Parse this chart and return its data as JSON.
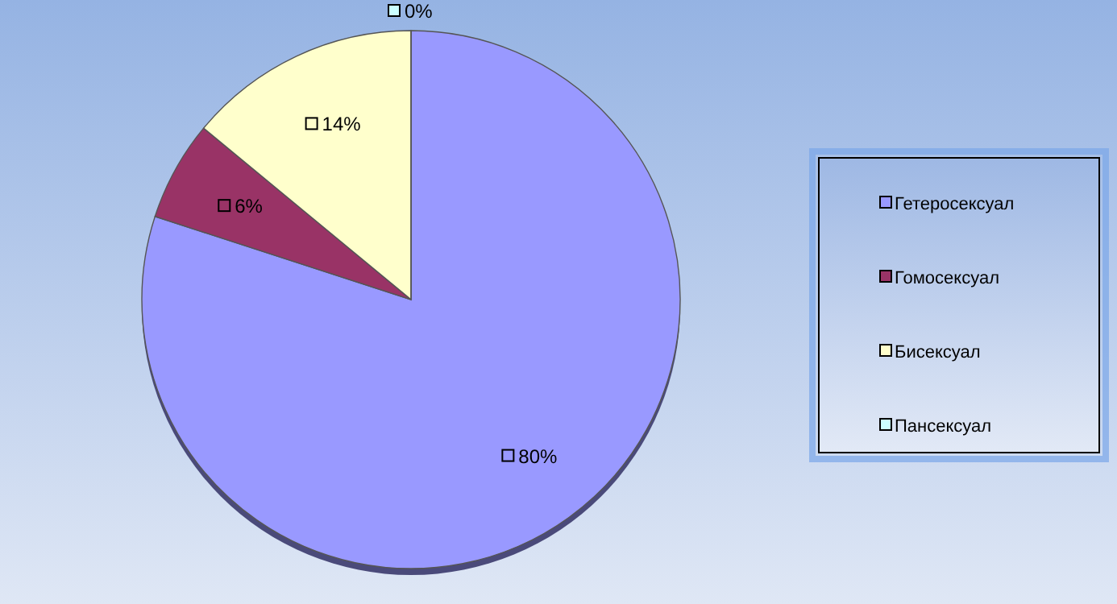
{
  "chart_data": {
    "type": "pie",
    "categories": [
      "Гетеросексуал",
      "Гомосексуал",
      "Бисексуал",
      "Пансексуал"
    ],
    "values": [
      80,
      6,
      14,
      0
    ],
    "colors": [
      "#9999ff",
      "#993366",
      "#ffffcc",
      "#ccffff"
    ],
    "value_labels": [
      "80%",
      "6%",
      "14%",
      "0%"
    ],
    "legend": "right"
  }
}
